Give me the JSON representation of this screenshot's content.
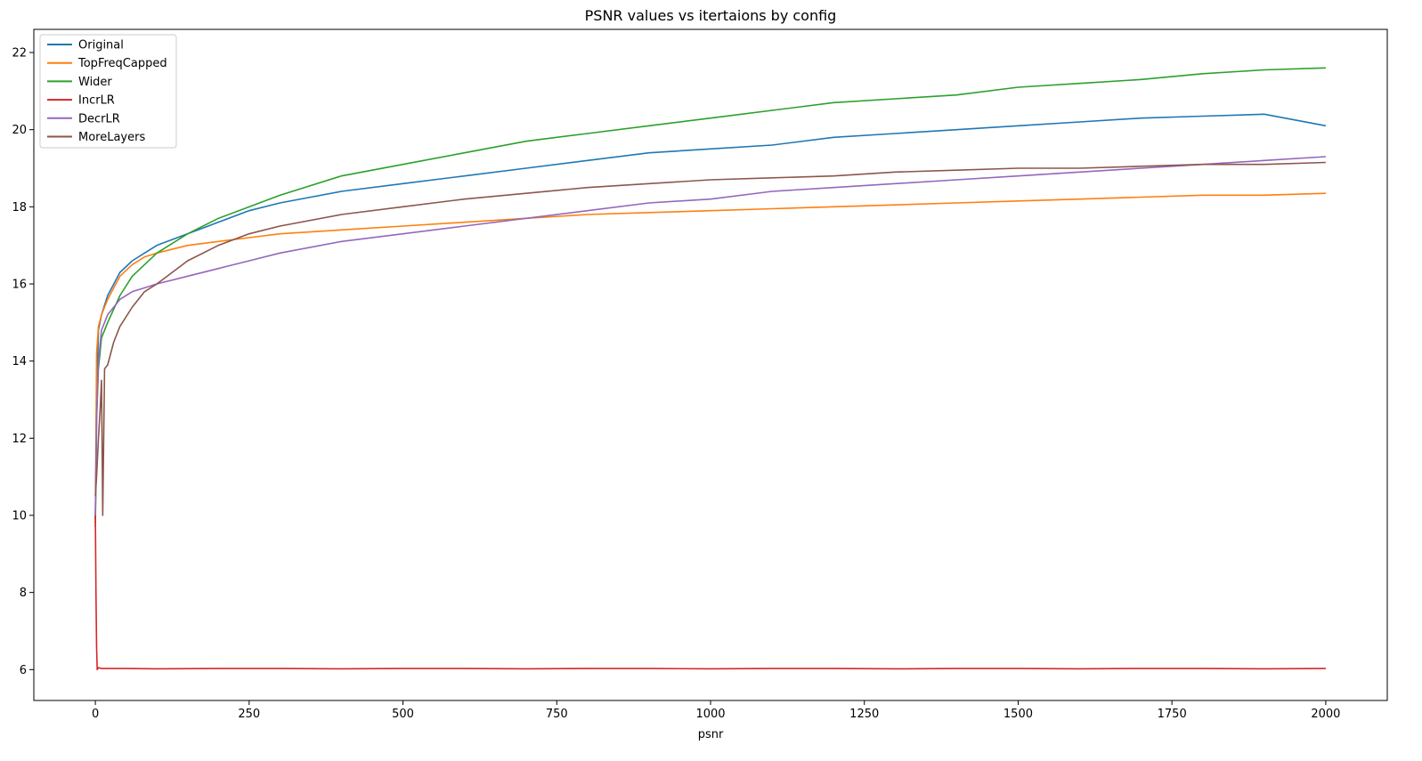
{
  "chart_data": {
    "type": "line",
    "title": "PSNR values vs itertaions by config",
    "xlabel": "psnr",
    "ylabel": "",
    "xlim": [
      -100,
      2100
    ],
    "ylim": [
      5.2,
      22.6
    ],
    "x_ticks": [
      0,
      250,
      500,
      750,
      1000,
      1250,
      1500,
      1750,
      2000
    ],
    "y_ticks": [
      6,
      8,
      10,
      12,
      14,
      16,
      18,
      20,
      22
    ],
    "x_tick_labels": [
      "0",
      "250",
      "500",
      "750",
      "1000",
      "1250",
      "1500",
      "1750",
      "2000"
    ],
    "y_tick_labels": [
      "6",
      "8",
      "10",
      "12",
      "14",
      "16",
      "18",
      "20",
      "22"
    ],
    "grid": false,
    "legend_position": "top-left",
    "series": [
      {
        "name": "Original",
        "color": "#1f77b4",
        "x": [
          0,
          2,
          5,
          10,
          20,
          40,
          60,
          80,
          100,
          150,
          200,
          250,
          300,
          400,
          500,
          600,
          700,
          800,
          900,
          1000,
          1100,
          1200,
          1300,
          1400,
          1500,
          1600,
          1700,
          1800,
          1900,
          2000
        ],
        "y": [
          9.9,
          13.0,
          14.8,
          15.2,
          15.7,
          16.3,
          16.6,
          16.8,
          17.0,
          17.3,
          17.6,
          17.9,
          18.1,
          18.4,
          18.6,
          18.8,
          19.0,
          19.2,
          19.4,
          19.5,
          19.6,
          19.8,
          19.9,
          20.0,
          20.1,
          20.2,
          20.3,
          20.35,
          20.4,
          20.1
        ]
      },
      {
        "name": "TopFreqCapped",
        "color": "#ff7f0e",
        "x": [
          0,
          2,
          5,
          10,
          20,
          40,
          60,
          80,
          100,
          150,
          200,
          250,
          300,
          400,
          500,
          600,
          700,
          800,
          900,
          1000,
          1100,
          1200,
          1300,
          1400,
          1500,
          1600,
          1700,
          1800,
          1900,
          2000
        ],
        "y": [
          9.8,
          14.2,
          14.9,
          15.2,
          15.6,
          16.2,
          16.5,
          16.7,
          16.8,
          17.0,
          17.1,
          17.2,
          17.3,
          17.4,
          17.5,
          17.6,
          17.7,
          17.8,
          17.85,
          17.9,
          17.95,
          18.0,
          18.05,
          18.1,
          18.15,
          18.2,
          18.25,
          18.3,
          18.3,
          18.35
        ]
      },
      {
        "name": "Wider",
        "color": "#2ca02c",
        "x": [
          0,
          2,
          5,
          10,
          20,
          40,
          60,
          80,
          100,
          150,
          200,
          250,
          300,
          400,
          500,
          600,
          700,
          800,
          900,
          1000,
          1100,
          1200,
          1300,
          1400,
          1500,
          1600,
          1700,
          1800,
          1900,
          2000
        ],
        "y": [
          9.7,
          12.5,
          13.8,
          14.6,
          15.0,
          15.7,
          16.2,
          16.5,
          16.8,
          17.3,
          17.7,
          18.0,
          18.3,
          18.8,
          19.1,
          19.4,
          19.7,
          19.9,
          20.1,
          20.3,
          20.5,
          20.7,
          20.8,
          20.9,
          21.1,
          21.2,
          21.3,
          21.45,
          21.55,
          21.6
        ]
      },
      {
        "name": "IncrLR",
        "color": "#d62728",
        "x": [
          0,
          1,
          2,
          3,
          5,
          10,
          50,
          100,
          200,
          300,
          400,
          500,
          600,
          700,
          800,
          900,
          1000,
          1100,
          1200,
          1300,
          1400,
          1500,
          1600,
          1700,
          1800,
          1900,
          2000
        ],
        "y": [
          10.0,
          8.0,
          6.6,
          6.0,
          6.05,
          6.03,
          6.03,
          6.02,
          6.03,
          6.03,
          6.02,
          6.03,
          6.03,
          6.02,
          6.03,
          6.03,
          6.02,
          6.03,
          6.03,
          6.02,
          6.03,
          6.03,
          6.02,
          6.03,
          6.03,
          6.02,
          6.03
        ]
      },
      {
        "name": "DecrLR",
        "color": "#9467bd",
        "x": [
          0,
          2,
          5,
          10,
          20,
          40,
          60,
          80,
          100,
          150,
          200,
          250,
          300,
          400,
          500,
          600,
          700,
          800,
          900,
          1000,
          1100,
          1200,
          1300,
          1400,
          1500,
          1600,
          1700,
          1800,
          1900,
          2000
        ],
        "y": [
          10.0,
          12.5,
          14.0,
          14.8,
          15.2,
          15.6,
          15.8,
          15.9,
          16.0,
          16.2,
          16.4,
          16.6,
          16.8,
          17.1,
          17.3,
          17.5,
          17.7,
          17.9,
          18.1,
          18.2,
          18.4,
          18.5,
          18.6,
          18.7,
          18.8,
          18.9,
          19.0,
          19.1,
          19.2,
          19.3
        ]
      },
      {
        "name": "MoreLayers",
        "color": "#8c564b",
        "x": [
          0,
          2,
          5,
          8,
          10,
          12,
          15,
          20,
          25,
          30,
          40,
          60,
          80,
          100,
          150,
          200,
          250,
          300,
          400,
          500,
          600,
          700,
          800,
          900,
          1000,
          1100,
          1200,
          1300,
          1400,
          1500,
          1600,
          1700,
          1800,
          1900,
          2000
        ],
        "y": [
          10.5,
          11.0,
          12.0,
          12.8,
          13.5,
          10.0,
          13.8,
          13.9,
          14.2,
          14.5,
          14.9,
          15.4,
          15.8,
          16.0,
          16.6,
          17.0,
          17.3,
          17.5,
          17.8,
          18.0,
          18.2,
          18.35,
          18.5,
          18.6,
          18.7,
          18.75,
          18.8,
          18.9,
          18.95,
          19.0,
          19.0,
          19.05,
          19.1,
          19.1,
          19.15
        ]
      }
    ]
  }
}
